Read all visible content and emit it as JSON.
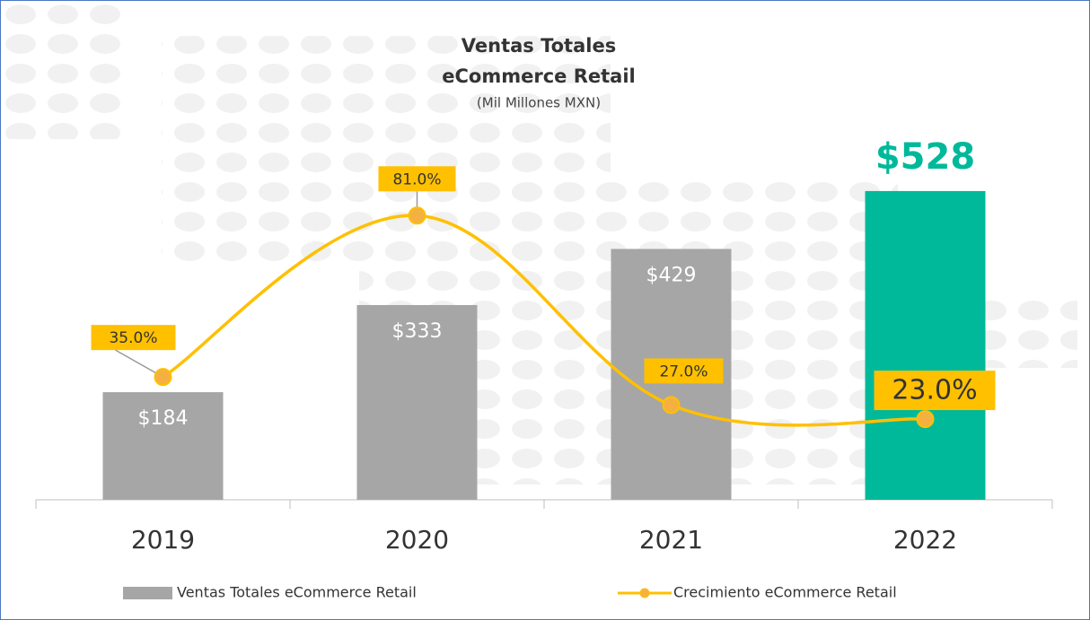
{
  "chart_data": {
    "type": "bar",
    "title": [
      "Ventas Totales",
      "eCommerce Retail"
    ],
    "subtitle": "(Mil Millones MXN)",
    "categories": [
      "2019",
      "2020",
      "2021",
      "2022"
    ],
    "ylim": [
      0,
      600
    ],
    "y2lim": [
      0,
      100
    ],
    "series": [
      {
        "name": "Ventas Totales eCommerce Retail",
        "type": "bar",
        "color": "#a6a6a6",
        "colors": [
          "#a6a6a6",
          "#a6a6a6",
          "#a6a6a6",
          "#00b99a"
        ],
        "values": [
          184,
          333,
          429,
          528
        ],
        "value_labels": [
          "$184",
          "$333",
          "$429",
          "$528"
        ]
      },
      {
        "name": "Crecimiento eCommerce Retail",
        "type": "line",
        "axis": "y2",
        "color": "#ffc000",
        "values": [
          35,
          81,
          27,
          23
        ],
        "value_labels": [
          "35.0%",
          "81.0%",
          "27.0%",
          "23.0%"
        ]
      }
    ]
  }
}
